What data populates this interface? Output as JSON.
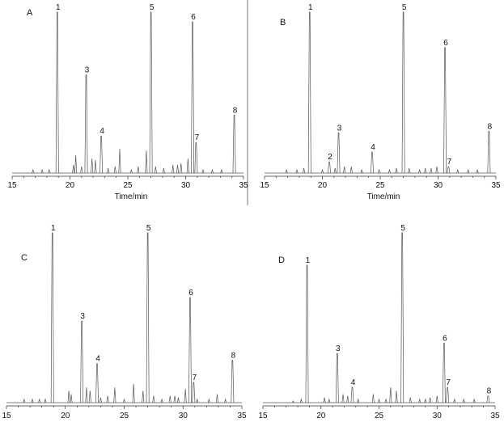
{
  "chart_data": [
    {
      "type": "line",
      "panel_label": "A",
      "xlabel": "Time/min",
      "ylabel": "",
      "xlim": [
        15,
        35
      ],
      "ylim": [
        0,
        100
      ],
      "x_ticks": [
        "15",
        "20",
        "25",
        "30",
        "35"
      ],
      "peaks": [
        {
          "label": "1",
          "x": 18.9,
          "y": 100
        },
        {
          "label": "3",
          "x": 21.4,
          "y": 61
        },
        {
          "label": "4",
          "x": 22.7,
          "y": 23
        },
        {
          "label": "5",
          "x": 27.0,
          "y": 100
        },
        {
          "label": "6",
          "x": 30.6,
          "y": 94
        },
        {
          "label": "7",
          "x": 30.9,
          "y": 19
        },
        {
          "label": "8",
          "x": 34.2,
          "y": 36
        }
      ],
      "minor_peaks": [
        [
          16.8,
          2
        ],
        [
          17.6,
          2
        ],
        [
          18.2,
          2
        ],
        [
          20.3,
          5
        ],
        [
          20.5,
          11
        ],
        [
          21.0,
          4
        ],
        [
          21.9,
          9
        ],
        [
          22.2,
          8
        ],
        [
          23.3,
          3
        ],
        [
          23.9,
          4
        ],
        [
          24.3,
          15
        ],
        [
          25.3,
          2
        ],
        [
          25.9,
          4
        ],
        [
          26.6,
          14
        ],
        [
          27.4,
          4
        ],
        [
          28.1,
          3
        ],
        [
          28.9,
          5
        ],
        [
          29.3,
          5
        ],
        [
          29.6,
          6
        ],
        [
          30.2,
          9
        ],
        [
          31.5,
          2
        ],
        [
          32.3,
          2
        ],
        [
          33.1,
          2
        ]
      ]
    },
    {
      "type": "line",
      "panel_label": "B",
      "xlabel": "Time/min",
      "ylabel": "",
      "xlim": [
        15,
        35
      ],
      "ylim": [
        0,
        100
      ],
      "x_ticks": [
        "15",
        "20",
        "25",
        "30",
        "35"
      ],
      "peaks": [
        {
          "label": "1",
          "x": 18.9,
          "y": 100
        },
        {
          "label": "2",
          "x": 20.6,
          "y": 7
        },
        {
          "label": "3",
          "x": 21.4,
          "y": 25
        },
        {
          "label": "4",
          "x": 24.3,
          "y": 13
        },
        {
          "label": "5",
          "x": 27.0,
          "y": 100
        },
        {
          "label": "6",
          "x": 30.6,
          "y": 78
        },
        {
          "label": "7",
          "x": 30.9,
          "y": 4
        },
        {
          "label": "8",
          "x": 34.4,
          "y": 26
        }
      ],
      "minor_peaks": [
        [
          16.9,
          2
        ],
        [
          17.8,
          2
        ],
        [
          18.4,
          3
        ],
        [
          20.0,
          2
        ],
        [
          21.1,
          3
        ],
        [
          21.9,
          4
        ],
        [
          22.5,
          4
        ],
        [
          23.4,
          2
        ],
        [
          24.9,
          2
        ],
        [
          25.8,
          2
        ],
        [
          26.4,
          3
        ],
        [
          27.5,
          3
        ],
        [
          28.4,
          2
        ],
        [
          28.9,
          3
        ],
        [
          29.4,
          3
        ],
        [
          29.9,
          4
        ],
        [
          31.7,
          2
        ],
        [
          32.6,
          2
        ],
        [
          33.4,
          2
        ]
      ]
    },
    {
      "type": "line",
      "panel_label": "C",
      "xlabel": "",
      "ylabel": "",
      "xlim": [
        15,
        35
      ],
      "ylim": [
        0,
        100
      ],
      "x_ticks": [
        "15",
        "20",
        "25",
        "30",
        "35"
      ],
      "peaks": [
        {
          "label": "1",
          "x": 18.9,
          "y": 100
        },
        {
          "label": "3",
          "x": 21.4,
          "y": 48
        },
        {
          "label": "4",
          "x": 22.7,
          "y": 23
        },
        {
          "label": "5",
          "x": 27.0,
          "y": 100
        },
        {
          "label": "6",
          "x": 30.6,
          "y": 62
        },
        {
          "label": "7",
          "x": 30.9,
          "y": 12
        },
        {
          "label": "8",
          "x": 34.2,
          "y": 25
        }
      ],
      "minor_peaks": [
        [
          16.5,
          2
        ],
        [
          17.2,
          2
        ],
        [
          17.8,
          2
        ],
        [
          18.3,
          2
        ],
        [
          20.3,
          7
        ],
        [
          20.5,
          5
        ],
        [
          21.8,
          9
        ],
        [
          22.1,
          7
        ],
        [
          23.0,
          3
        ],
        [
          23.6,
          4
        ],
        [
          24.2,
          9
        ],
        [
          25.0,
          2
        ],
        [
          25.8,
          11
        ],
        [
          26.6,
          7
        ],
        [
          27.5,
          4
        ],
        [
          28.2,
          2
        ],
        [
          28.9,
          4
        ],
        [
          29.3,
          4
        ],
        [
          29.6,
          3
        ],
        [
          30.2,
          8
        ],
        [
          31.2,
          2
        ],
        [
          32.2,
          2
        ],
        [
          32.9,
          5
        ],
        [
          33.6,
          2
        ]
      ]
    },
    {
      "type": "line",
      "panel_label": "D",
      "xlabel": "",
      "ylabel": "",
      "xlim": [
        15,
        35
      ],
      "ylim": [
        0,
        100
      ],
      "x_ticks": [
        "15",
        "20",
        "25",
        "30",
        "35"
      ],
      "peaks": [
        {
          "label": "1",
          "x": 18.8,
          "y": 81
        },
        {
          "label": "3",
          "x": 21.4,
          "y": 29
        },
        {
          "label": "4",
          "x": 22.7,
          "y": 9
        },
        {
          "label": "5",
          "x": 27.0,
          "y": 100
        },
        {
          "label": "6",
          "x": 30.6,
          "y": 35
        },
        {
          "label": "7",
          "x": 30.9,
          "y": 9
        },
        {
          "label": "8",
          "x": 34.4,
          "y": 4
        }
      ],
      "minor_peaks": [
        [
          17.6,
          1
        ],
        [
          18.3,
          2
        ],
        [
          20.3,
          3
        ],
        [
          20.7,
          2
        ],
        [
          21.9,
          5
        ],
        [
          22.3,
          4
        ],
        [
          23.2,
          2
        ],
        [
          24.5,
          5
        ],
        [
          25.0,
          2
        ],
        [
          25.6,
          2
        ],
        [
          26.0,
          9
        ],
        [
          26.5,
          7
        ],
        [
          27.7,
          3
        ],
        [
          28.5,
          2
        ],
        [
          29.0,
          2
        ],
        [
          29.4,
          3
        ],
        [
          30.0,
          4
        ],
        [
          31.5,
          2
        ],
        [
          32.3,
          2
        ],
        [
          33.2,
          2
        ]
      ]
    }
  ]
}
